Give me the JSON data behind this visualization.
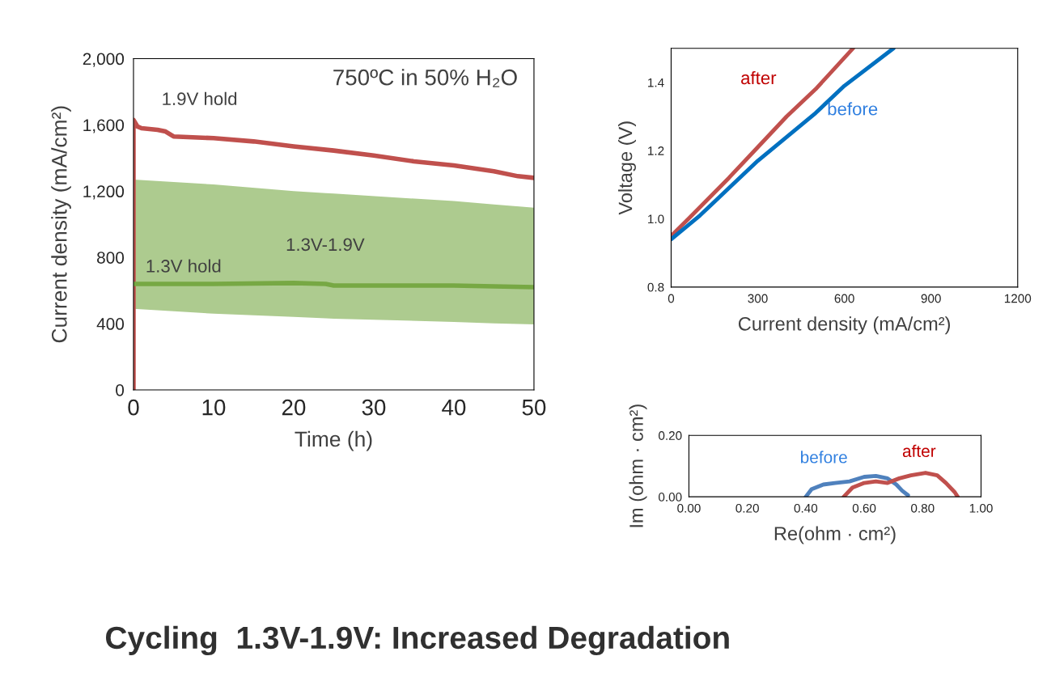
{
  "chart_data": [
    {
      "type": "line",
      "subtitle": "750ºC in 50% H₂O",
      "xlabel": "Time (h)",
      "ylabel": "Current density (mA/cm²)",
      "xlim": [
        0,
        50
      ],
      "xticks": [
        0,
        10,
        20,
        30,
        40,
        50
      ],
      "ylim": [
        0,
        2000
      ],
      "yticks": [
        0,
        400,
        800,
        {
          "value": 1200,
          "label": "1,200"
        },
        {
          "value": 1600,
          "label": "1,600"
        },
        {
          "value": 2000,
          "label": "2,000"
        }
      ],
      "grid": false,
      "legend": false,
      "annotations": [
        "1.3V-1.9V",
        "Cycling  1.3V-1.9V: Increased Degradation"
      ],
      "series": [
        {
          "name": "1.9V hold",
          "color": "#c0504d",
          "x": [
            0,
            0,
            0.5,
            1,
            3,
            4,
            5,
            10,
            15,
            20,
            25,
            30,
            35,
            40,
            45,
            48,
            50
          ],
          "values": [
            0,
            1630,
            1590,
            1580,
            1570,
            1560,
            1530,
            1520,
            1500,
            1470,
            1445,
            1415,
            1380,
            1355,
            1320,
            1290,
            1280
          ]
        },
        {
          "name": "1.3V hold",
          "color": "#77a844",
          "x": [
            0,
            10,
            20,
            24,
            25,
            40,
            45,
            50
          ],
          "values": [
            640,
            640,
            645,
            640,
            630,
            630,
            625,
            620
          ],
          "lower": [
            490,
            460,
            440,
            432,
            430,
            410,
            402,
            395
          ],
          "upper": [
            1270,
            1240,
            1200,
            1188,
            1185,
            1140,
            1120,
            1100
          ]
        }
      ]
    },
    {
      "type": "line",
      "xlabel": "Current density (mA/cm²)",
      "ylabel": "Voltage (V)",
      "xlim": [
        0,
        1200
      ],
      "xticks": [
        0,
        300,
        600,
        900,
        1200
      ],
      "ylim": [
        0.8,
        1.5
      ],
      "yticks": [
        0.8,
        {
          "value": 1.0,
          "label": "1.0"
        },
        1.2,
        1.4
      ],
      "grid": false,
      "legend": false,
      "series": [
        {
          "name": "after",
          "color": "#c0504d",
          "x": [
            0,
            60,
            130,
            200,
            300,
            400,
            500,
            630
          ],
          "values": [
            0.95,
            1.0,
            1.06,
            1.12,
            1.21,
            1.3,
            1.38,
            1.5
          ]
        },
        {
          "name": "before",
          "color": "#0070c0",
          "x": [
            0,
            100,
            200,
            300,
            400,
            500,
            600,
            770
          ],
          "values": [
            0.94,
            1.01,
            1.09,
            1.17,
            1.24,
            1.31,
            1.39,
            1.5
          ]
        }
      ]
    },
    {
      "type": "line",
      "xlabel": "Re(ohm · cm²)",
      "ylabel": "Im (ohm · cm²)",
      "xlim": [
        0,
        1
      ],
      "xticks": [
        {
          "value": 0,
          "label": "0.00"
        },
        {
          "value": 0.2,
          "label": "0.20"
        },
        {
          "value": 0.4,
          "label": "0.40"
        },
        {
          "value": 0.6,
          "label": "0.60"
        },
        {
          "value": 0.8,
          "label": "0.80"
        },
        {
          "value": 1,
          "label": "1.00"
        }
      ],
      "ylim": [
        0,
        0.2
      ],
      "yticks": [
        {
          "value": 0,
          "label": "0.00"
        },
        {
          "value": 0.2,
          "label": "0.20"
        }
      ],
      "grid": false,
      "legend": false,
      "series": [
        {
          "name": "before",
          "color": "#4f81bd",
          "x": [
            0.4,
            0.42,
            0.46,
            0.5,
            0.55,
            0.6,
            0.64,
            0.68,
            0.71,
            0.73,
            0.75
          ],
          "values": [
            0,
            0.025,
            0.04,
            0.045,
            0.05,
            0.065,
            0.068,
            0.06,
            0.04,
            0.02,
            0.005
          ]
        },
        {
          "name": "after",
          "color": "#c0504d",
          "x": [
            0.53,
            0.56,
            0.6,
            0.64,
            0.68,
            0.72,
            0.76,
            0.81,
            0.85,
            0.88,
            0.91,
            0.92
          ],
          "values": [
            0,
            0.03,
            0.045,
            0.05,
            0.045,
            0.06,
            0.07,
            0.078,
            0.07,
            0.045,
            0.015,
            0
          ]
        }
      ]
    }
  ]
}
